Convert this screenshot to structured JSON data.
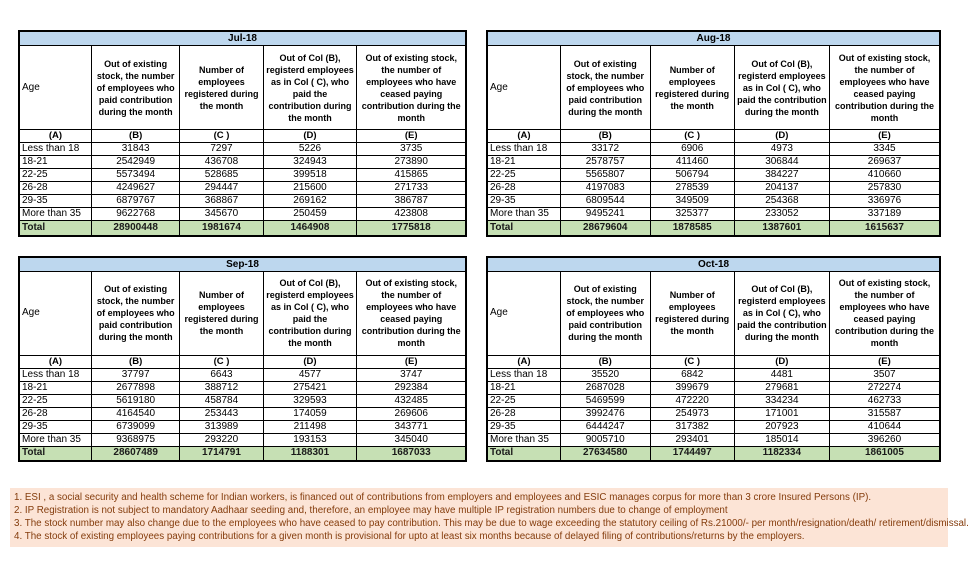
{
  "columns": {
    "age_label": "Age",
    "headers": [
      "Out of existing stock, the number of employees who paid contribution during the month",
      "Number of employees registered during the month",
      "Out of Col (B), registerd employees as in Col ( C), who paid the contribution during the month",
      "Out of existing stock, the number of  employees who have ceased paying contribution during the month"
    ],
    "letters": [
      "(A)",
      "(B)",
      "(C )",
      "(D)",
      "(E)"
    ]
  },
  "tables": [
    {
      "month": "Jul-18",
      "rows": [
        [
          "Less than 18",
          "31843",
          "7297",
          "5226",
          "3735"
        ],
        [
          "18-21",
          "2542949",
          "436708",
          "324943",
          "273890"
        ],
        [
          "22-25",
          "5573494",
          "528685",
          "399518",
          "415865"
        ],
        [
          "26-28",
          "4249627",
          "294447",
          "215600",
          "271733"
        ],
        [
          "29-35",
          "6879767",
          "368867",
          "269162",
          "386787"
        ],
        [
          "More than 35",
          "9622768",
          "345670",
          "250459",
          "423808"
        ]
      ],
      "total": [
        "Total",
        "28900448",
        "1981674",
        "1464908",
        "1775818"
      ]
    },
    {
      "month": "Aug-18",
      "rows": [
        [
          "Less than 18",
          "33172",
          "6906",
          "4973",
          "3345"
        ],
        [
          "18-21",
          "2578757",
          "411460",
          "306844",
          "269637"
        ],
        [
          "22-25",
          "5565807",
          "506794",
          "384227",
          "410660"
        ],
        [
          "26-28",
          "4197083",
          "278539",
          "204137",
          "257830"
        ],
        [
          "29-35",
          "6809544",
          "349509",
          "254368",
          "336976"
        ],
        [
          "More than 35",
          "9495241",
          "325377",
          "233052",
          "337189"
        ]
      ],
      "total": [
        "Total",
        "28679604",
        "1878585",
        "1387601",
        "1615637"
      ]
    },
    {
      "month": "Sep-18",
      "rows": [
        [
          "Less than 18",
          "37797",
          "6643",
          "4577",
          "3747"
        ],
        [
          "18-21",
          "2677898",
          "388712",
          "275421",
          "292384"
        ],
        [
          "22-25",
          "5619180",
          "458784",
          "329593",
          "432485"
        ],
        [
          "26-28",
          "4164540",
          "253443",
          "174059",
          "269606"
        ],
        [
          "29-35",
          "6739099",
          "313989",
          "211498",
          "343771"
        ],
        [
          "More than 35",
          "9368975",
          "293220",
          "193153",
          "345040"
        ]
      ],
      "total": [
        "Total",
        "28607489",
        "1714791",
        "1188301",
        "1687033"
      ]
    },
    {
      "month": "Oct-18",
      "rows": [
        [
          "Less than 18",
          "35520",
          "6842",
          "4481",
          "3507"
        ],
        [
          "18-21",
          "2687028",
          "399679",
          "279681",
          "272274"
        ],
        [
          "22-25",
          "5469599",
          "472220",
          "334234",
          "462733"
        ],
        [
          "26-28",
          "3992476",
          "254973",
          "171001",
          "315587"
        ],
        [
          "29-35",
          "6444247",
          "317382",
          "207923",
          "410644"
        ],
        [
          "More than 35",
          "9005710",
          "293401",
          "185014",
          "396260"
        ]
      ],
      "total": [
        "Total",
        "27634580",
        "1744497",
        "1182334",
        "1861005"
      ]
    }
  ],
  "footnotes": [
    "1. ESI , a social security and health scheme for Indian workers, is financed out of contributions from employers and employees and ESIC manages corpus for more than 3 crore Insured Persons (IP).",
    "2. IP Registration is not subject to mandatory Aadhaar seeding and, therefore, an employee may have multiple IP registration numbers due to change of employment",
    "3. The stock number may also change due to the employees who have ceased to pay contribution. This may  be due to wage exceeding the statutory ceiling of  Rs.21000/- per month/resignation/death/ retirement/dismissal.",
    "4. The stock of existing employees paying contributions for a given month is provisional for upto at least six months because of delayed filing of contributions/returns by the employers."
  ],
  "colors": {
    "header_blue": "#BDD7EE",
    "month_text": "#1F3864",
    "total_green": "#C6E0B4",
    "note_bg": "#FCE4D6",
    "note_text": "#843C0C"
  }
}
